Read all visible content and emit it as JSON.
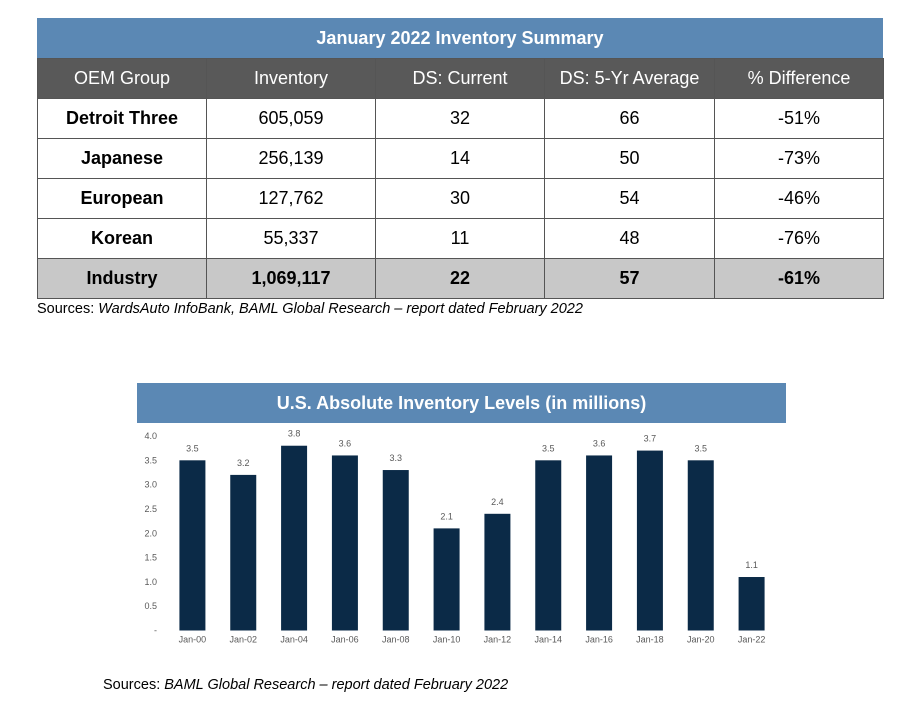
{
  "summary": {
    "title": "January 2022 Inventory Summary",
    "headers": [
      "OEM Group",
      "Inventory",
      "DS: Current",
      "DS: 5-Yr Average",
      "% Difference"
    ],
    "rows": [
      [
        "Detroit Three",
        "605,059",
        "32",
        "66",
        "-51%"
      ],
      [
        "Japanese",
        "256,139",
        "14",
        "50",
        "-73%"
      ],
      [
        "European",
        "127,762",
        "30",
        "54",
        "-46%"
      ],
      [
        "Korean",
        "55,337",
        "11",
        "48",
        "-76%"
      ]
    ],
    "total": [
      "Industry",
      "1,069,117",
      "22",
      "57",
      "-61%"
    ],
    "sources_label": "Sources: ",
    "sources_text": "WardsAuto InfoBank, BAML Global Research – report dated February 2022"
  },
  "chart_section": {
    "sources_label": "Sources: ",
    "sources_text": "BAML Global Research – report dated February 2022"
  },
  "chart_data": {
    "type": "bar",
    "title": "U.S. Absolute Inventory Levels (in millions)",
    "categories": [
      "Jan-00",
      "Jan-02",
      "Jan-04",
      "Jan-06",
      "Jan-08",
      "Jan-10",
      "Jan-12",
      "Jan-14",
      "Jan-16",
      "Jan-18",
      "Jan-20",
      "Jan-22"
    ],
    "values": [
      3.5,
      3.2,
      3.8,
      3.6,
      3.3,
      2.1,
      2.4,
      3.5,
      3.6,
      3.7,
      3.5,
      1.1
    ],
    "data_labels": [
      "3.5",
      "3.2",
      "3.8",
      "3.6",
      "3.3",
      "2.1",
      "2.4",
      "3.5",
      "3.6",
      "3.7",
      "3.5",
      "1.1"
    ],
    "y_ticks": [
      "-",
      "0.5",
      "1.0",
      "1.5",
      "2.0",
      "2.5",
      "3.0",
      "3.5",
      "4.0"
    ],
    "ylim": [
      0,
      4.0
    ],
    "xlabel": "",
    "ylabel": "",
    "grid": false,
    "bar_color": "#0b2a47"
  }
}
